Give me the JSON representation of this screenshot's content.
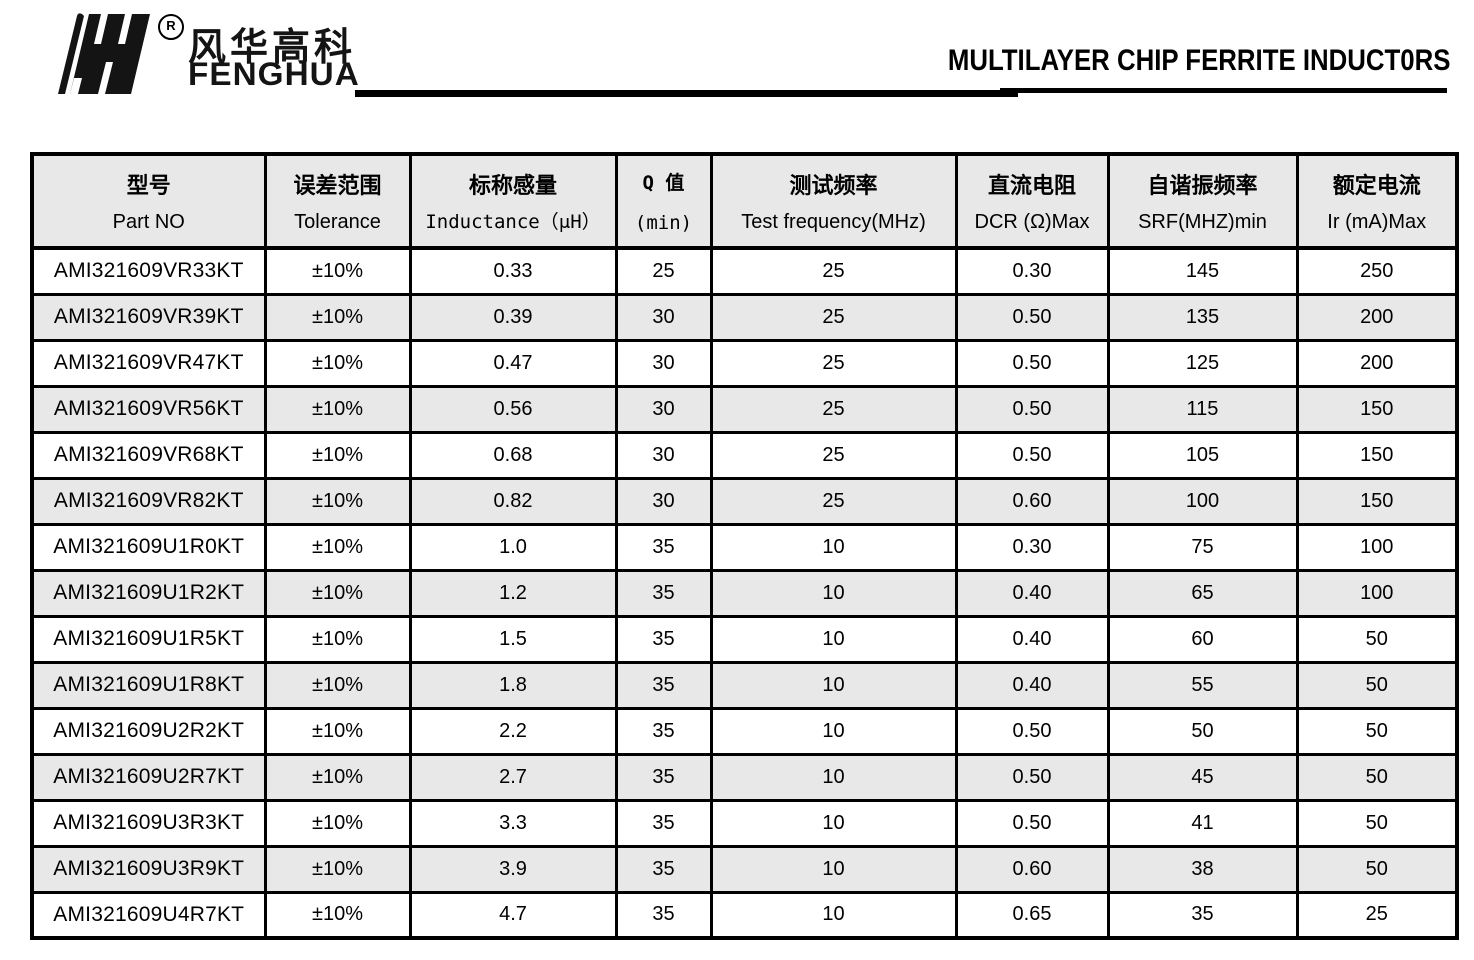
{
  "header": {
    "logo_chinese": "风华高科",
    "logo_english": "FENGHUA",
    "registered_mark": "R",
    "title": "MULTILAYER CHIP FERRITE INDUCT0RS"
  },
  "table": {
    "columns": [
      {
        "zh": "型号",
        "en": "Part NO"
      },
      {
        "zh": "误差范围",
        "en": "Tolerance"
      },
      {
        "zh": "标称感量",
        "en": "Inductance（μH）"
      },
      {
        "zh": "Q 值",
        "en": "(min)"
      },
      {
        "zh": "测试频率",
        "en": "Test frequency(MHz)"
      },
      {
        "zh": "直流电阻",
        "en": "DCR (Ω)Max"
      },
      {
        "zh": "自谐振频率",
        "en": "SRF(MHZ)min"
      },
      {
        "zh": "额定电流",
        "en": "Ir (mA)Max"
      }
    ],
    "rows": [
      [
        "AMI321609VR33KT",
        "±10%",
        "0.33",
        "25",
        "25",
        "0.30",
        "145",
        "250"
      ],
      [
        "AMI321609VR39KT",
        "±10%",
        "0.39",
        "30",
        "25",
        "0.50",
        "135",
        "200"
      ],
      [
        "AMI321609VR47KT",
        "±10%",
        "0.47",
        "30",
        "25",
        "0.50",
        "125",
        "200"
      ],
      [
        "AMI321609VR56KT",
        "±10%",
        "0.56",
        "30",
        "25",
        "0.50",
        "115",
        "150"
      ],
      [
        "AMI321609VR68KT",
        "±10%",
        "0.68",
        "30",
        "25",
        "0.50",
        "105",
        "150"
      ],
      [
        "AMI321609VR82KT",
        "±10%",
        "0.82",
        "30",
        "25",
        "0.60",
        "100",
        "150"
      ],
      [
        "AMI321609U1R0KT",
        "±10%",
        "1.0",
        "35",
        "10",
        "0.30",
        "75",
        "100"
      ],
      [
        "AMI321609U1R2KT",
        "±10%",
        "1.2",
        "35",
        "10",
        "0.40",
        "65",
        "100"
      ],
      [
        "AMI321609U1R5KT",
        "±10%",
        "1.5",
        "35",
        "10",
        "0.40",
        "60",
        "50"
      ],
      [
        "AMI321609U1R8KT",
        "±10%",
        "1.8",
        "35",
        "10",
        "0.40",
        "55",
        "50"
      ],
      [
        "AMI321609U2R2KT",
        "±10%",
        "2.2",
        "35",
        "10",
        "0.50",
        "50",
        "50"
      ],
      [
        "AMI321609U2R7KT",
        "±10%",
        "2.7",
        "35",
        "10",
        "0.50",
        "45",
        "50"
      ],
      [
        "AMI321609U3R3KT",
        "±10%",
        "3.3",
        "35",
        "10",
        "0.50",
        "41",
        "50"
      ],
      [
        "AMI321609U3R9KT",
        "±10%",
        "3.9",
        "35",
        "10",
        "0.60",
        "38",
        "50"
      ],
      [
        "AMI321609U4R7KT",
        "±10%",
        "4.7",
        "35",
        "10",
        "0.65",
        "35",
        "25"
      ]
    ],
    "colors": {
      "row_alt_bg": "#e8e8e8",
      "header_bg": "#e8e8e8",
      "border": "#000000",
      "text": "#000000"
    }
  }
}
